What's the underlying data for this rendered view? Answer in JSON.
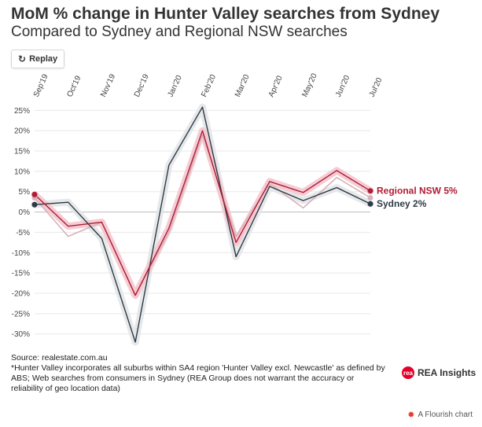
{
  "title": "MoM % change in Hunter Valley searches from Sydney",
  "subtitle": "Compared to Sydney and Regional NSW searches",
  "replay": {
    "icon": "↻",
    "label": "Replay"
  },
  "footer": {
    "source": "Source: realestate.com.au",
    "note": "*Hunter Valley incorporates all suburbs within SA4 region 'Hunter Valley excl. Newcastle' as defined by ABS; Web searches from consumers in Sydney (REA Group does not warrant the accuracy or reliability of geo location data)"
  },
  "logo": {
    "mark": "rea",
    "text": "REA Insights"
  },
  "flourish": {
    "icon": "flourish-star-icon",
    "text": "A Flourish chart"
  },
  "chart_data": {
    "type": "line",
    "categories": [
      "Sep'19",
      "Oct'19",
      "Nov'19",
      "Dec'19",
      "Jan'20",
      "Feb'20",
      "Mar'20",
      "Apr'20",
      "May'20",
      "Jun'20",
      "Jul'20"
    ],
    "ylim": [
      -32,
      27
    ],
    "yticks": [
      25,
      20,
      15,
      10,
      5,
      0,
      -5,
      -10,
      -15,
      -20,
      -25,
      -30
    ],
    "ytick_labels": [
      "25%",
      "20%",
      "15%",
      "10%",
      "5%",
      "0%",
      "-5%",
      "-10%",
      "-15%",
      "-20%",
      "-25%",
      "-30%"
    ],
    "grid": "horizontal",
    "series": [
      {
        "name": "Hunter Valley",
        "color": "#d8b1b9",
        "values": [
          3.5,
          -6,
          -2.5,
          -20.5,
          -5,
          19,
          -6,
          7,
          1,
          8.5,
          3.5
        ]
      },
      {
        "name": "Sydney",
        "color": "#2e3a46",
        "halo": "#e3e5e7",
        "values": [
          1.8,
          2.4,
          -6.5,
          -32,
          11.5,
          25.8,
          -11,
          6.3,
          2.8,
          6,
          2
        ],
        "end_label": "Sydney 2%"
      },
      {
        "name": "Regional NSW",
        "color": "#b01c34",
        "halo": "#f4c6cf",
        "values": [
          4.3,
          -3.5,
          -2.5,
          -20.5,
          -4,
          20,
          -7.5,
          7.5,
          4.8,
          10.2,
          5.2
        ],
        "end_label": "Regional NSW 5%"
      }
    ]
  }
}
